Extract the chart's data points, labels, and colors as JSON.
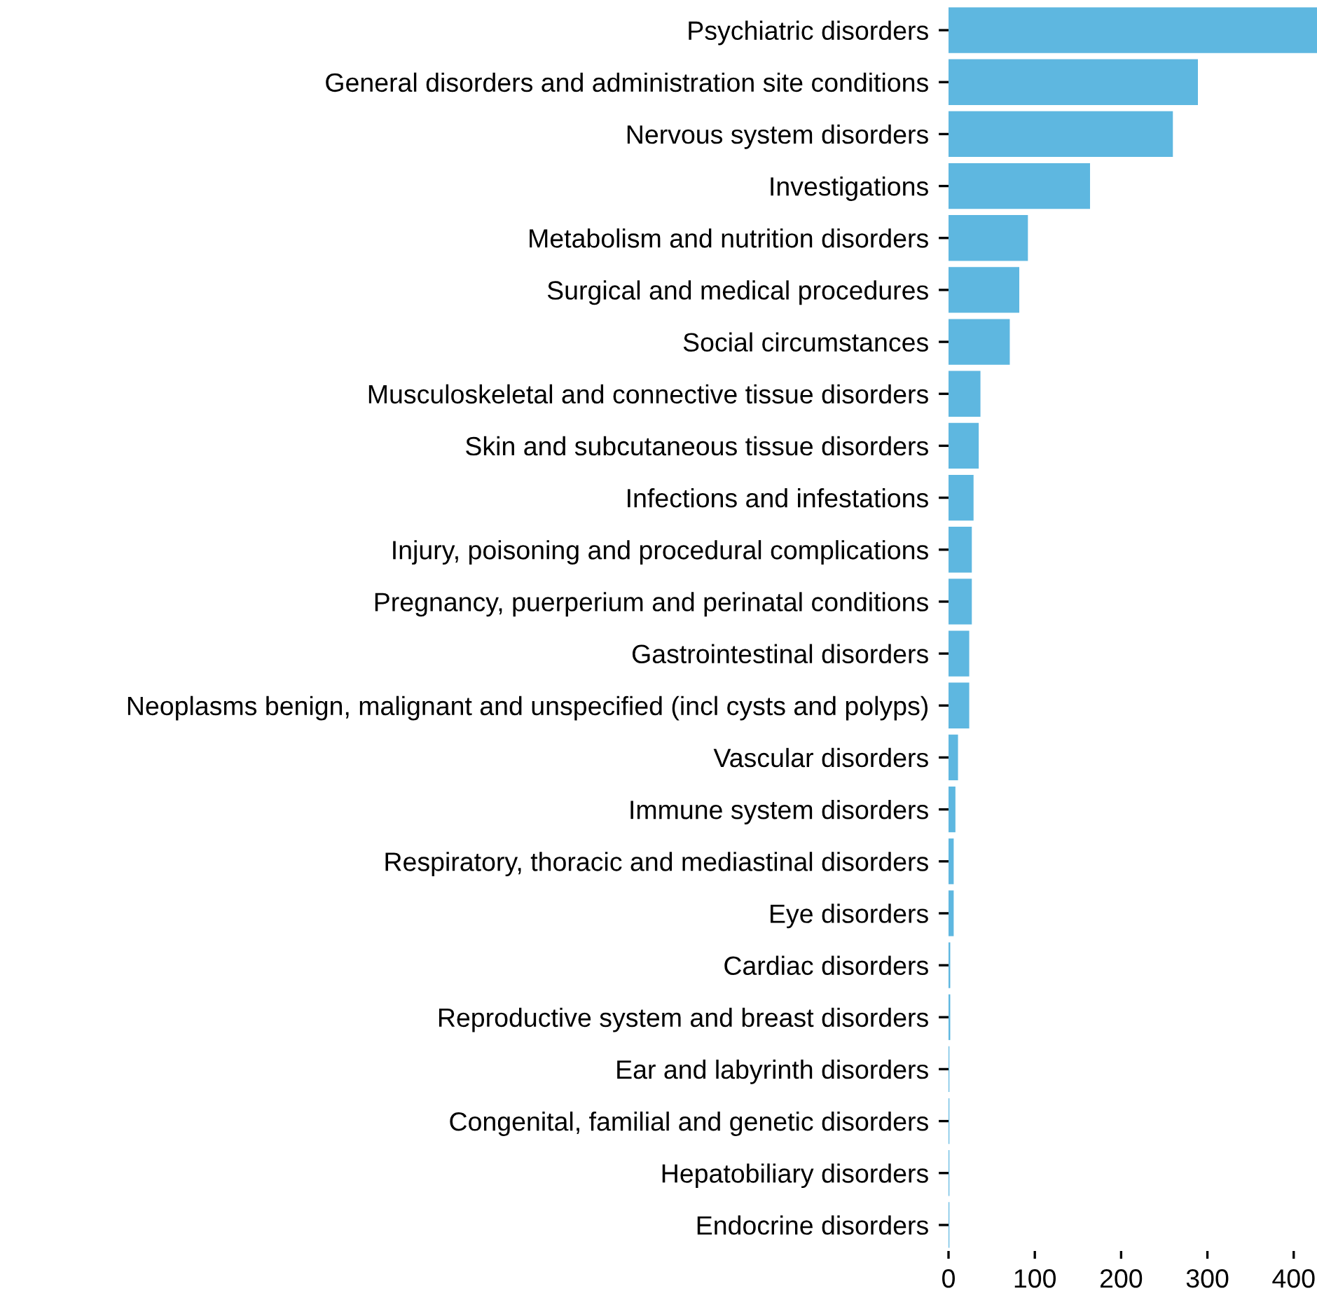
{
  "chart_data": {
    "type": "bar",
    "orientation": "horizontal",
    "categories": [
      "Psychiatric disorders",
      "General disorders and administration site conditions",
      "Nervous system disorders",
      "Investigations",
      "Metabolism and nutrition disorders",
      "Surgical and medical procedures",
      "Social circumstances",
      "Musculoskeletal and connective tissue disorders",
      "Skin and subcutaneous tissue disorders",
      "Infections and infestations",
      "Injury, poisoning and procedural complications",
      "Pregnancy, puerperium and perinatal conditions",
      "Gastrointestinal disorders",
      "Neoplasms benign, malignant and unspecified (incl cysts and polyps)",
      "Vascular disorders",
      "Immune system disorders",
      "Respiratory, thoracic and mediastinal disorders",
      "Eye disorders",
      "Cardiac disorders",
      "Reproductive system and breast disorders",
      "Ear and labyrinth disorders",
      "Congenital, familial and genetic disorders",
      "Hepatobiliary disorders",
      "Endocrine disorders"
    ],
    "values": [
      427,
      289,
      260,
      164,
      92,
      82,
      71,
      37,
      35,
      29,
      27,
      27,
      24,
      24,
      11,
      8,
      6,
      6,
      2,
      2,
      1,
      1,
      1,
      1
    ],
    "color": "#5eb7e0",
    "xlim": [
      0,
      427
    ],
    "xticks": [
      0,
      100,
      200,
      300,
      400
    ],
    "grid": false
  }
}
